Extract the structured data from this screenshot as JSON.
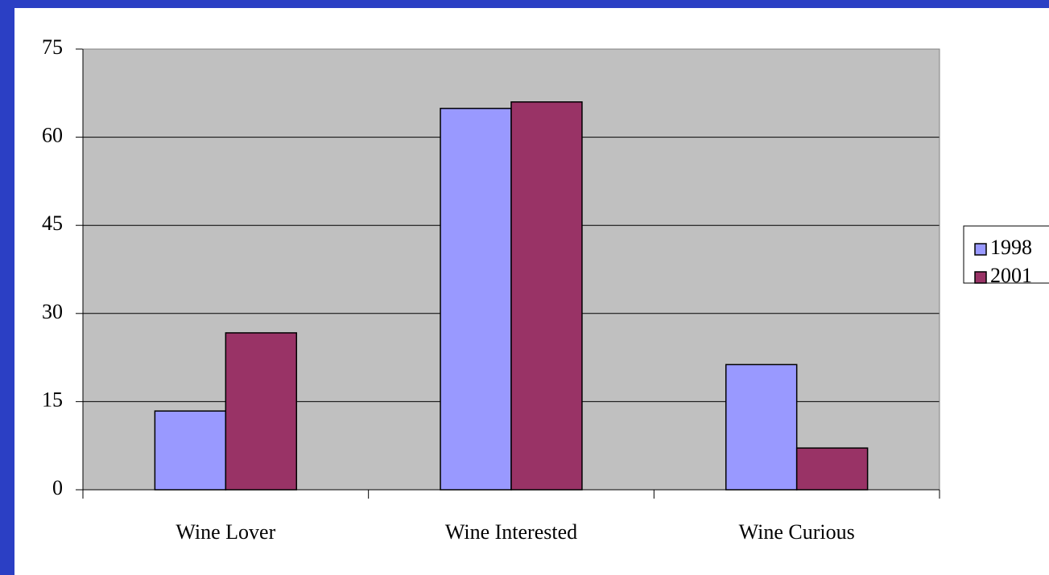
{
  "chart_data": {
    "type": "bar",
    "categories": [
      "Wine Lover",
      "Wine Interested",
      "Wine Curious"
    ],
    "series": [
      {
        "name": "1998",
        "color": "#9999ff",
        "values": [
          13.4,
          64.9,
          21.3
        ]
      },
      {
        "name": "2001",
        "color": "#993366",
        "values": [
          26.7,
          66.0,
          7.1
        ]
      }
    ],
    "ylim": [
      0,
      75
    ],
    "yticks": [
      0,
      15,
      30,
      45,
      60,
      75
    ],
    "grid": true,
    "legend": "right"
  }
}
